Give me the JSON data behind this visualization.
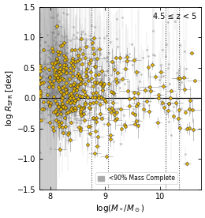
{
  "title": "4.5 ≤ z < 5",
  "xlabel": "log$(M_*/M_\\odot)$",
  "ylabel": "log $R_{\\rm SFR}$ [dex]",
  "xlim": [
    7.8,
    10.75
  ],
  "ylim": [
    -1.5,
    1.5
  ],
  "xticks": [
    8,
    9,
    10
  ],
  "yticks": [
    -1.5,
    -1.0,
    -0.5,
    0.0,
    0.5,
    1.0,
    1.5
  ],
  "hline_y": 0.0,
  "dotted_vlines": [
    8.75,
    9.05,
    10.1,
    10.35
  ],
  "shaded_region_xmax": 8.1,
  "scatter_color": "#e8b400",
  "scatter_edge_color": "#222222",
  "legend_label": "<90% Mass Complete",
  "seed": 42,
  "n_gray": 600,
  "n_yellow": 380
}
